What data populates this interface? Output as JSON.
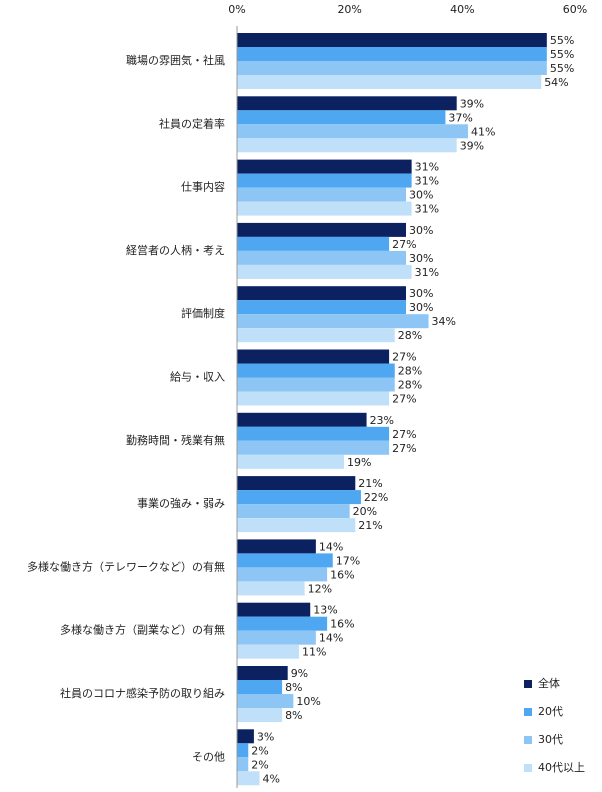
{
  "chart_data": {
    "type": "bar",
    "orientation": "horizontal",
    "categories": [
      "職場の雰囲気・社風",
      "社員の定着率",
      "仕事内容",
      "経営者の人柄・考え",
      "評価制度",
      "給与・収入",
      "勤務時間・残業有無",
      "事業の強み・弱み",
      "多様な働き方（テレワークなど）の有無",
      "多様な働き方（副業など）の有無",
      "社員のコロナ感染予防の取り組み",
      "その他"
    ],
    "series": [
      {
        "name": "全体",
        "color": "#0c2260",
        "values": [
          55,
          39,
          31,
          30,
          30,
          27,
          23,
          21,
          14,
          13,
          9,
          3
        ],
        "value_labels": [
          "55%",
          "39%",
          "31%",
          "30%",
          "30%",
          "27%",
          "23%",
          "21%",
          "14%",
          "13%",
          "9%",
          "3%"
        ]
      },
      {
        "name": "20代",
        "color": "#4ea7f0",
        "values": [
          55,
          37,
          31,
          27,
          30,
          28,
          27,
          22,
          17,
          16,
          8,
          2
        ],
        "value_labels": [
          "55%",
          "37%",
          "31%",
          "27%",
          "30%",
          "28%",
          "27%",
          "22%",
          "17%",
          "16%",
          "8%",
          "2%"
        ]
      },
      {
        "name": "30代",
        "color": "#8dc6f5",
        "values": [
          55,
          41,
          30,
          30,
          34,
          28,
          27,
          20,
          16,
          14,
          10,
          2
        ],
        "value_labels": [
          "55%",
          "41%",
          "30%",
          "30%",
          "34%",
          "28%",
          "27%",
          "20%",
          "16%",
          "14%",
          "10%",
          "2%"
        ]
      },
      {
        "name": "40代以上",
        "color": "#c0e0fa",
        "values": [
          54,
          39,
          31,
          31,
          28,
          27,
          19,
          21,
          12,
          11,
          8,
          4
        ],
        "value_labels": [
          "54%",
          "39%",
          "31%",
          "31%",
          "28%",
          "27%",
          "19%",
          "21%",
          "12%",
          "11%",
          "8%",
          "4%"
        ]
      }
    ],
    "xlim": [
      0,
      60
    ],
    "xticks": [
      {
        "value": 0,
        "label": "0%"
      },
      {
        "value": 20,
        "label": "20%"
      },
      {
        "value": 40,
        "label": "40%"
      },
      {
        "value": 60,
        "label": "60%"
      }
    ],
    "legend": "bottom-right"
  }
}
